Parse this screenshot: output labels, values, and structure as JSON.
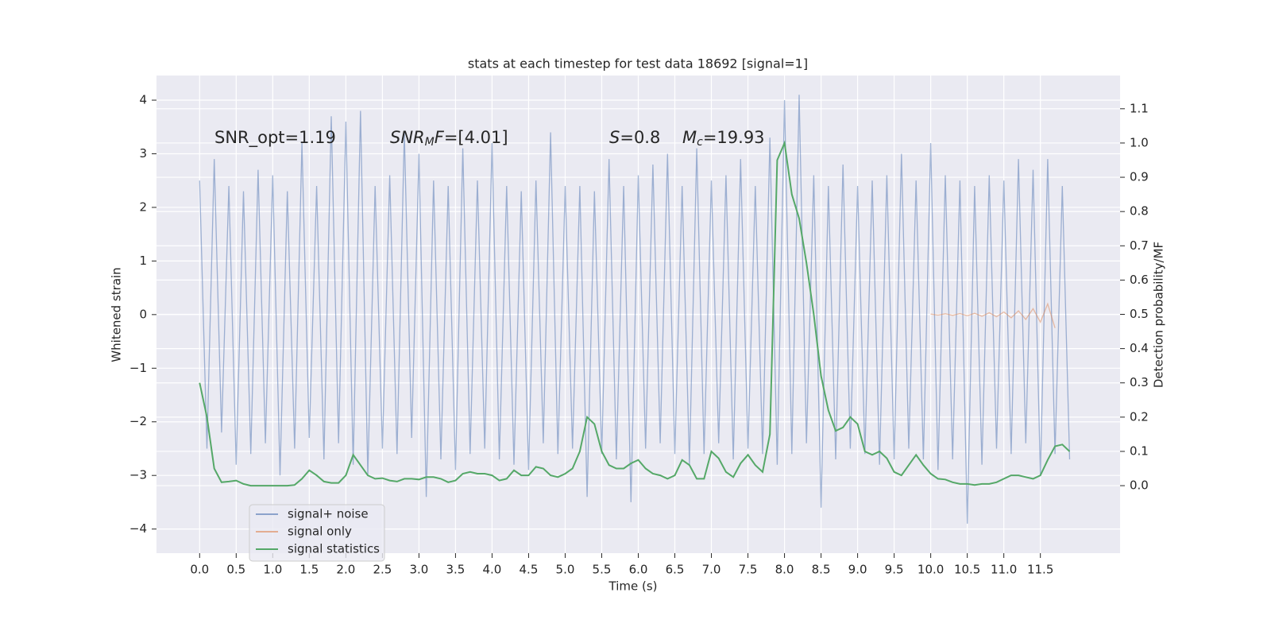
{
  "chart_data": {
    "type": "line",
    "title": "stats at each timestep for test data 18692 [signal=1]",
    "xlabel": "Time (s)",
    "ylabel": "Whitened strain",
    "y2label": "Detection probability/MF",
    "annotations": [
      [
        "SNR_opt=1.19"
      ],
      [
        "SNR",
        "M",
        "F",
        "=[4.01]"
      ],
      [
        "S",
        "=0.8"
      ],
      [
        "M",
        "c",
        "=19.93"
      ]
    ],
    "x": [
      0,
      0.1,
      0.2,
      0.3,
      0.4,
      0.5,
      0.6,
      0.7,
      0.8,
      0.9,
      1,
      1.1,
      1.2,
      1.3,
      1.4,
      1.5,
      1.6,
      1.7,
      1.8,
      1.9,
      2,
      2.1,
      2.2,
      2.3,
      2.4,
      2.5,
      2.6,
      2.7,
      2.8,
      2.9,
      3,
      3.1,
      3.2,
      3.3,
      3.4,
      3.5,
      3.6,
      3.7,
      3.8,
      3.9,
      4,
      4.1,
      4.2,
      4.3,
      4.4,
      4.5,
      4.6,
      4.7,
      4.8,
      4.9,
      5,
      5.1,
      5.2,
      5.3,
      5.4,
      5.5,
      5.6,
      5.7,
      5.8,
      5.9,
      6,
      6.1,
      6.2,
      6.3,
      6.4,
      6.5,
      6.6,
      6.7,
      6.8,
      6.9,
      7,
      7.1,
      7.2,
      7.3,
      7.4,
      7.5,
      7.6,
      7.7,
      7.8,
      7.9,
      8,
      8.1,
      8.2,
      8.3,
      8.4,
      8.5,
      8.6,
      8.7,
      8.8,
      8.9,
      9,
      9.1,
      9.2,
      9.3,
      9.4,
      9.5,
      9.6,
      9.7,
      9.8,
      9.9,
      10,
      10.1,
      10.2,
      10.3,
      10.4,
      10.5,
      10.6,
      10.7,
      10.8,
      10.9,
      11,
      11.1,
      11.2,
      11.3,
      11.4,
      11.5,
      11.6,
      11.7,
      11.8,
      11.9
    ],
    "series": [
      {
        "name": "signal+ noise",
        "color": "#4c72b0",
        "values": [
          2.5,
          -2.5,
          2.9,
          -2.2,
          2.4,
          -2.8,
          2.3,
          -2.6,
          2.7,
          -2.4,
          2.6,
          -3.0,
          2.3,
          -2.5,
          3.2,
          -2.3,
          2.4,
          -2.7,
          3.7,
          -2.4,
          3.6,
          -2.8,
          3.8,
          -3.0,
          2.4,
          -2.5,
          2.6,
          -2.6,
          3.4,
          -2.3,
          3.0,
          -3.4,
          2.5,
          -2.7,
          2.4,
          -2.9,
          3.1,
          -2.6,
          2.5,
          -2.5,
          3.2,
          -2.7,
          2.4,
          -2.8,
          2.3,
          -2.9,
          2.5,
          -2.4,
          3.4,
          -2.6,
          2.4,
          -2.5,
          2.4,
          -3.4,
          2.3,
          -2.6,
          2.9,
          -2.7,
          2.4,
          -3.5,
          2.6,
          -2.5,
          2.8,
          -2.4,
          3.0,
          -2.6,
          2.4,
          -2.8,
          3.1,
          -2.6,
          2.5,
          -2.4,
          2.6,
          -2.7,
          2.9,
          -2.5,
          2.4,
          -2.6,
          3.3,
          -2.8,
          4.0,
          -2.6,
          4.1,
          -2.4,
          2.6,
          -3.6,
          2.4,
          -2.7,
          2.8,
          -2.5,
          2.4,
          -2.6,
          2.5,
          -2.8,
          2.6,
          -2.7,
          3.0,
          -2.5,
          2.5,
          -2.7,
          3.2,
          -2.9,
          2.6,
          -2.7,
          2.5,
          -3.9,
          2.4,
          -2.8,
          2.6,
          -2.5,
          2.5,
          -2.6,
          2.9,
          -2.4,
          2.7,
          -3.0,
          2.9,
          -2.6,
          2.4,
          -2.7
        ]
      },
      {
        "name": "signal only",
        "color": "#dd8452",
        "x": [
          10,
          10.1,
          10.2,
          10.3,
          10.4,
          10.5,
          10.6,
          10.7,
          10.8,
          10.9,
          11,
          11.1,
          11.2,
          11.3,
          11.4,
          11.5,
          11.6,
          11.7
        ],
        "values": [
          0.01,
          -0.01,
          0.015,
          -0.015,
          0.02,
          -0.02,
          0.025,
          -0.03,
          0.035,
          -0.04,
          0.05,
          -0.06,
          0.07,
          -0.09,
          0.11,
          -0.14,
          0.2,
          -0.25
        ]
      },
      {
        "name": "signal statistics",
        "color": "#55a868",
        "axis": "y2",
        "values": [
          0.3,
          0.2,
          0.05,
          0.01,
          0.012,
          0.015,
          0.005,
          0.0,
          0.0,
          0.0,
          0.0,
          0.0,
          0.0,
          0.002,
          0.02,
          0.045,
          0.03,
          0.012,
          0.008,
          0.008,
          0.03,
          0.09,
          0.06,
          0.03,
          0.02,
          0.022,
          0.015,
          0.012,
          0.02,
          0.02,
          0.018,
          0.025,
          0.025,
          0.02,
          0.01,
          0.015,
          0.035,
          0.04,
          0.035,
          0.035,
          0.03,
          0.015,
          0.02,
          0.045,
          0.03,
          0.03,
          0.055,
          0.05,
          0.03,
          0.025,
          0.035,
          0.05,
          0.1,
          0.2,
          0.18,
          0.1,
          0.06,
          0.05,
          0.05,
          0.065,
          0.075,
          0.05,
          0.035,
          0.03,
          0.02,
          0.03,
          0.075,
          0.06,
          0.02,
          0.02,
          0.1,
          0.08,
          0.04,
          0.025,
          0.065,
          0.09,
          0.06,
          0.04,
          0.15,
          0.95,
          1.0,
          0.85,
          0.78,
          0.65,
          0.5,
          0.32,
          0.22,
          0.16,
          0.17,
          0.2,
          0.18,
          0.1,
          0.09,
          0.1,
          0.08,
          0.04,
          0.03,
          0.06,
          0.09,
          0.06,
          0.035,
          0.02,
          0.018,
          0.01,
          0.005,
          0.005,
          0.002,
          0.005,
          0.005,
          0.01,
          0.02,
          0.03,
          0.03,
          0.025,
          0.02,
          0.03,
          0.075,
          0.115,
          0.12,
          0.1
        ]
      }
    ],
    "xlim": [
      -0.59,
      12.59
    ],
    "ylim": [
      -4.45,
      4.46
    ],
    "y2lim": [
      -0.197,
      1.197
    ],
    "xticks": [
      {
        "value": 0,
        "label": "0.0"
      },
      0.5,
      {
        "value": 1,
        "label": "1.0"
      },
      1.5,
      {
        "value": 2,
        "label": "2.0"
      },
      2.5,
      {
        "value": 3,
        "label": "3.0"
      },
      3.5,
      {
        "value": 4,
        "label": "4.0"
      },
      4.5,
      {
        "value": 5,
        "label": "5.0"
      },
      5.5,
      {
        "value": 6,
        "label": "6.0"
      },
      6.5,
      {
        "value": 7,
        "label": "7.0"
      },
      7.5,
      {
        "value": 8,
        "label": "8.0"
      },
      8.5,
      {
        "value": 9,
        "label": "9.0"
      },
      9.5,
      {
        "value": 10,
        "label": "10.0"
      },
      10.5,
      {
        "value": 11,
        "label": "11.0"
      },
      11.5
    ],
    "yticks": [
      {
        "value": -4,
        "label": "−4"
      },
      {
        "value": -3,
        "label": "−3"
      },
      {
        "value": -2,
        "label": "−2"
      },
      {
        "value": -1,
        "label": "−1"
      },
      0,
      1,
      2,
      3,
      4
    ],
    "y2ticks": [
      {
        "value": 0,
        "label": "0.0"
      },
      0.1,
      0.2,
      0.3,
      0.4,
      0.5,
      0.6,
      0.7,
      0.8,
      0.9,
      {
        "value": 1,
        "label": "1.0"
      },
      1.1
    ],
    "grid": true,
    "legend": "lower left",
    "background": "#eaeaf2"
  }
}
